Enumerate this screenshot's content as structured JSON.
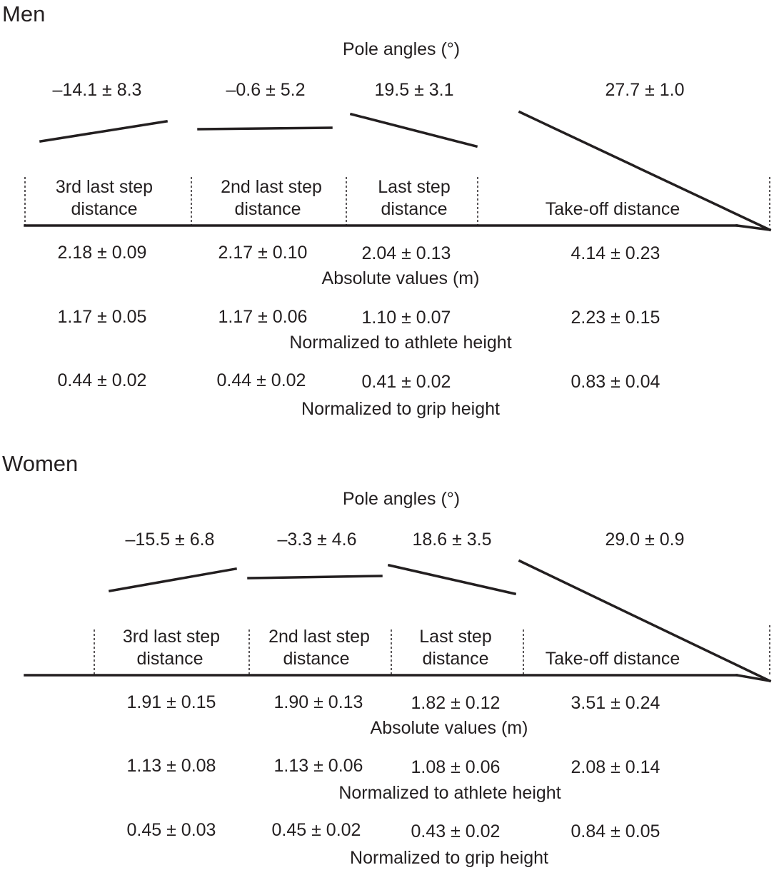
{
  "panels": [
    {
      "gender": "Men",
      "pole_angles_label": "Pole angles (°)",
      "pole_angles": [
        "–14.1 ± 8.3",
        "–0.6 ± 5.2",
        "19.5 ± 3.1",
        "27.7 ± 1.0"
      ],
      "segments": [
        {
          "line1": "3rd last step",
          "line2": "distance"
        },
        {
          "line1": "2nd last step",
          "line2": "distance"
        },
        {
          "line1": "Last step",
          "line2": "distance"
        },
        {
          "line1": "",
          "line2": "Take-off distance"
        }
      ],
      "absolute_label": "Absolute values (m)",
      "absolute": [
        "2.18 ± 0.09",
        "2.17 ± 0.10",
        "2.04 ± 0.13",
        "4.14 ± 0.23"
      ],
      "athlete_label": "Normalized to athlete height",
      "athlete": [
        "1.17 ± 0.05",
        "1.17 ± 0.06",
        "1.10 ± 0.07",
        "2.23 ± 0.15"
      ],
      "grip_label": "Normalized to grip height",
      "grip": [
        "0.44 ± 0.02",
        "0.44 ± 0.02",
        "0.41 ± 0.02",
        "0.83 ± 0.04"
      ]
    },
    {
      "gender": "Women",
      "pole_angles_label": "Pole angles (°)",
      "pole_angles": [
        "–15.5 ± 6.8",
        "–3.3 ± 4.6",
        "18.6 ± 3.5",
        "29.0 ± 0.9"
      ],
      "segments": [
        {
          "line1": "3rd last step",
          "line2": "distance"
        },
        {
          "line1": "2nd last step",
          "line2": "distance"
        },
        {
          "line1": "Last step",
          "line2": "distance"
        },
        {
          "line1": "",
          "line2": "Take-off distance"
        }
      ],
      "absolute_label": "Absolute values (m)",
      "absolute": [
        "1.91 ± 0.15",
        "1.90 ± 0.13",
        "1.82 ± 0.12",
        "3.51 ± 0.24"
      ],
      "athlete_label": "Normalized to athlete height",
      "athlete": [
        "1.13 ± 0.08",
        "1.13 ± 0.06",
        "1.08 ± 0.06",
        "2.08 ± 0.14"
      ],
      "grip_label": "Normalized to grip height",
      "grip": [
        "0.45 ± 0.03",
        "0.45 ± 0.02",
        "0.43 ± 0.02",
        "0.84 ± 0.05"
      ]
    }
  ]
}
